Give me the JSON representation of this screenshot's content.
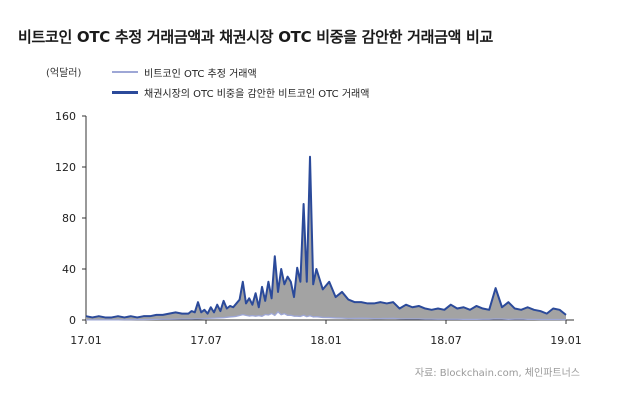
{
  "title": "비트코인 OTC 추정 거래금액과 채권시장 OTC 비중을 감안한 거래금액 비교",
  "unit_label": "(억달러)",
  "source": "자료: Blockchain.com, 체인파트너스",
  "chart_data": {
    "type": "area",
    "ylim": [
      0,
      160
    ],
    "yticks": [
      "0",
      "40",
      "80",
      "120",
      "160"
    ],
    "xticks": [
      "17.01",
      "17.07",
      "18.01",
      "18.07",
      "19.01"
    ],
    "series": [
      {
        "name": "비트코인 OTC 추정 거래액",
        "color": "#9ea7d6",
        "x": [
          0,
          10,
          20,
          30,
          40,
          50,
          60,
          70,
          80,
          90,
          100,
          110,
          120,
          130,
          140,
          150,
          160,
          165,
          170,
          175,
          180,
          185,
          190,
          195,
          200,
          205,
          210,
          215,
          220,
          225,
          230,
          235,
          240,
          245,
          250,
          255,
          260,
          265,
          270,
          275,
          280,
          285,
          290,
          295,
          300,
          305,
          310,
          315,
          320,
          325,
          330,
          335,
          340,
          345,
          350,
          355,
          360,
          370,
          380,
          390,
          400,
          410,
          420,
          430,
          440,
          450,
          460,
          470,
          480,
          490,
          500,
          510,
          520,
          530,
          540,
          550,
          560,
          570,
          580,
          590,
          600,
          610,
          620,
          630,
          640,
          650,
          660,
          670,
          680,
          690,
          700,
          710,
          720,
          730,
          740,
          750
        ],
        "y": [
          0.1,
          0.1,
          0.1,
          0.1,
          0.1,
          0.1,
          0.2,
          0.2,
          0.3,
          0.3,
          0.4,
          0.5,
          0.6,
          0.6,
          0.7,
          0.8,
          0.8,
          0.8,
          0.9,
          0.9,
          1.0,
          1.2,
          1.3,
          1.4,
          1.5,
          1.6,
          1.7,
          1.8,
          2.1,
          2.4,
          2.6,
          2.9,
          3.5,
          4.2,
          3.6,
          3.1,
          3.4,
          3.0,
          3.4,
          2.9,
          4.3,
          3.9,
          5.1,
          3.6,
          6.4,
          4.1,
          5.0,
          3.6,
          3.7,
          3.0,
          3.0,
          2.8,
          3.7,
          2.6,
          3.3,
          2.4,
          2.6,
          2.0,
          1.9,
          1.6,
          1.5,
          1.2,
          1.3,
          1.4,
          1.3,
          1.1,
          1.1,
          1.2,
          1.3,
          1.0,
          0.9,
          0.9,
          0.9,
          0.7,
          0.7,
          0.6,
          0.6,
          0.6,
          0.6,
          0.5,
          0.5,
          0.5,
          0.6,
          0.6,
          0.9,
          0.8,
          0.5,
          0.7,
          0.8,
          0.5,
          0.5,
          0.4,
          0.4,
          0.4,
          0.4,
          0.3
        ]
      },
      {
        "name": "채권시장의 OTC 비중을 감안한 비트코인 OTC 거래액",
        "color": "#2b4a9a",
        "x": [
          0,
          10,
          20,
          30,
          40,
          50,
          60,
          70,
          80,
          90,
          100,
          110,
          120,
          130,
          140,
          150,
          160,
          165,
          170,
          175,
          180,
          185,
          190,
          195,
          200,
          205,
          210,
          215,
          220,
          225,
          230,
          235,
          240,
          245,
          250,
          255,
          260,
          265,
          270,
          275,
          280,
          285,
          290,
          295,
          300,
          305,
          310,
          315,
          320,
          325,
          330,
          335,
          340,
          345,
          350,
          355,
          360,
          370,
          380,
          390,
          400,
          410,
          420,
          430,
          440,
          450,
          460,
          470,
          480,
          490,
          500,
          510,
          520,
          530,
          540,
          550,
          560,
          570,
          580,
          590,
          600,
          610,
          620,
          630,
          640,
          650,
          660,
          670,
          680,
          690,
          700,
          710,
          720,
          730,
          740,
          750
        ],
        "y": [
          3,
          2,
          3,
          2,
          2,
          3,
          2,
          3,
          2,
          3,
          3,
          4,
          4,
          5,
          6,
          5,
          5,
          7,
          6,
          14,
          6,
          8,
          5,
          10,
          6,
          12,
          7,
          15,
          9,
          11,
          10,
          13,
          16,
          30,
          13,
          17,
          12,
          21,
          10,
          26,
          15,
          30,
          17,
          50,
          22,
          40,
          28,
          34,
          30,
          18,
          41,
          30,
          91,
          30,
          128,
          28,
          40,
          24,
          30,
          18,
          22,
          16,
          14,
          14,
          13,
          13,
          14,
          13,
          14,
          9,
          12,
          10,
          11,
          9,
          8,
          9,
          8,
          12,
          9,
          10,
          8,
          11,
          9,
          8,
          25,
          10,
          14,
          9,
          8,
          10,
          8,
          7,
          5,
          9,
          8,
          4
        ]
      }
    ]
  }
}
